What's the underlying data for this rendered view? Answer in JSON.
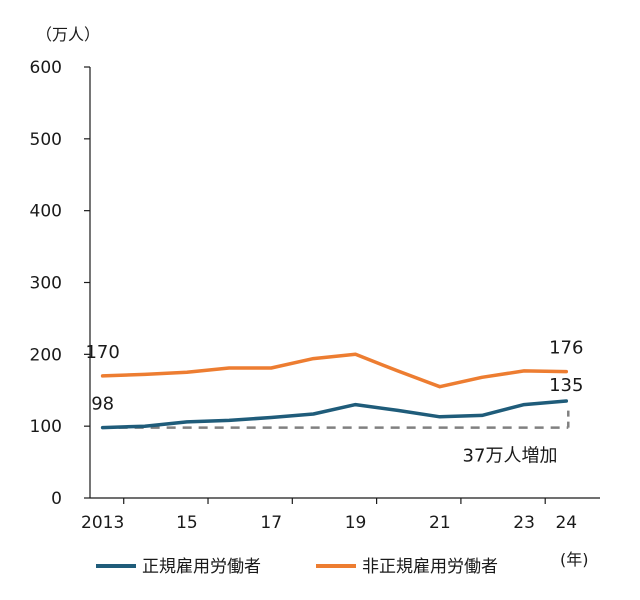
{
  "chart_data": {
    "type": "line",
    "yunit": "（万人）",
    "xunit": "(年)",
    "ylim": [
      0,
      600
    ],
    "yticks": [
      0,
      100,
      200,
      300,
      400,
      500,
      600
    ],
    "xrange": [
      2012.7,
      2024.8
    ],
    "xticks": [
      {
        "year": 2013,
        "label": "2013"
      },
      {
        "year": 2015,
        "label": "15"
      },
      {
        "year": 2017,
        "label": "17"
      },
      {
        "year": 2019,
        "label": "19"
      },
      {
        "year": 2021,
        "label": "21"
      },
      {
        "year": 2023,
        "label": "23"
      },
      {
        "year": 2024,
        "label": "24"
      }
    ],
    "series": [
      {
        "name": "正規雇用労働者",
        "color": "#1f5c7a",
        "x": [
          2013,
          2014,
          2015,
          2016,
          2017,
          2018,
          2019,
          2020,
          2021,
          2022,
          2023,
          2024
        ],
        "values": [
          98,
          100,
          106,
          108,
          112,
          117,
          130,
          122,
          113,
          115,
          130,
          135
        ],
        "labels": {
          "start": "98",
          "end": "135"
        }
      },
      {
        "name": "非正規雇用労働者",
        "color": "#ed7d31",
        "x": [
          2013,
          2014,
          2015,
          2016,
          2017,
          2018,
          2019,
          2020,
          2021,
          2022,
          2023,
          2024
        ],
        "values": [
          170,
          172,
          175,
          181,
          181,
          194,
          200,
          177,
          155,
          168,
          177,
          176
        ],
        "labels": {
          "start": "170",
          "end": "176"
        }
      }
    ],
    "annotation": {
      "text": "37万人増加",
      "from_value": 98,
      "to_value": 135,
      "color": "#808080"
    }
  }
}
